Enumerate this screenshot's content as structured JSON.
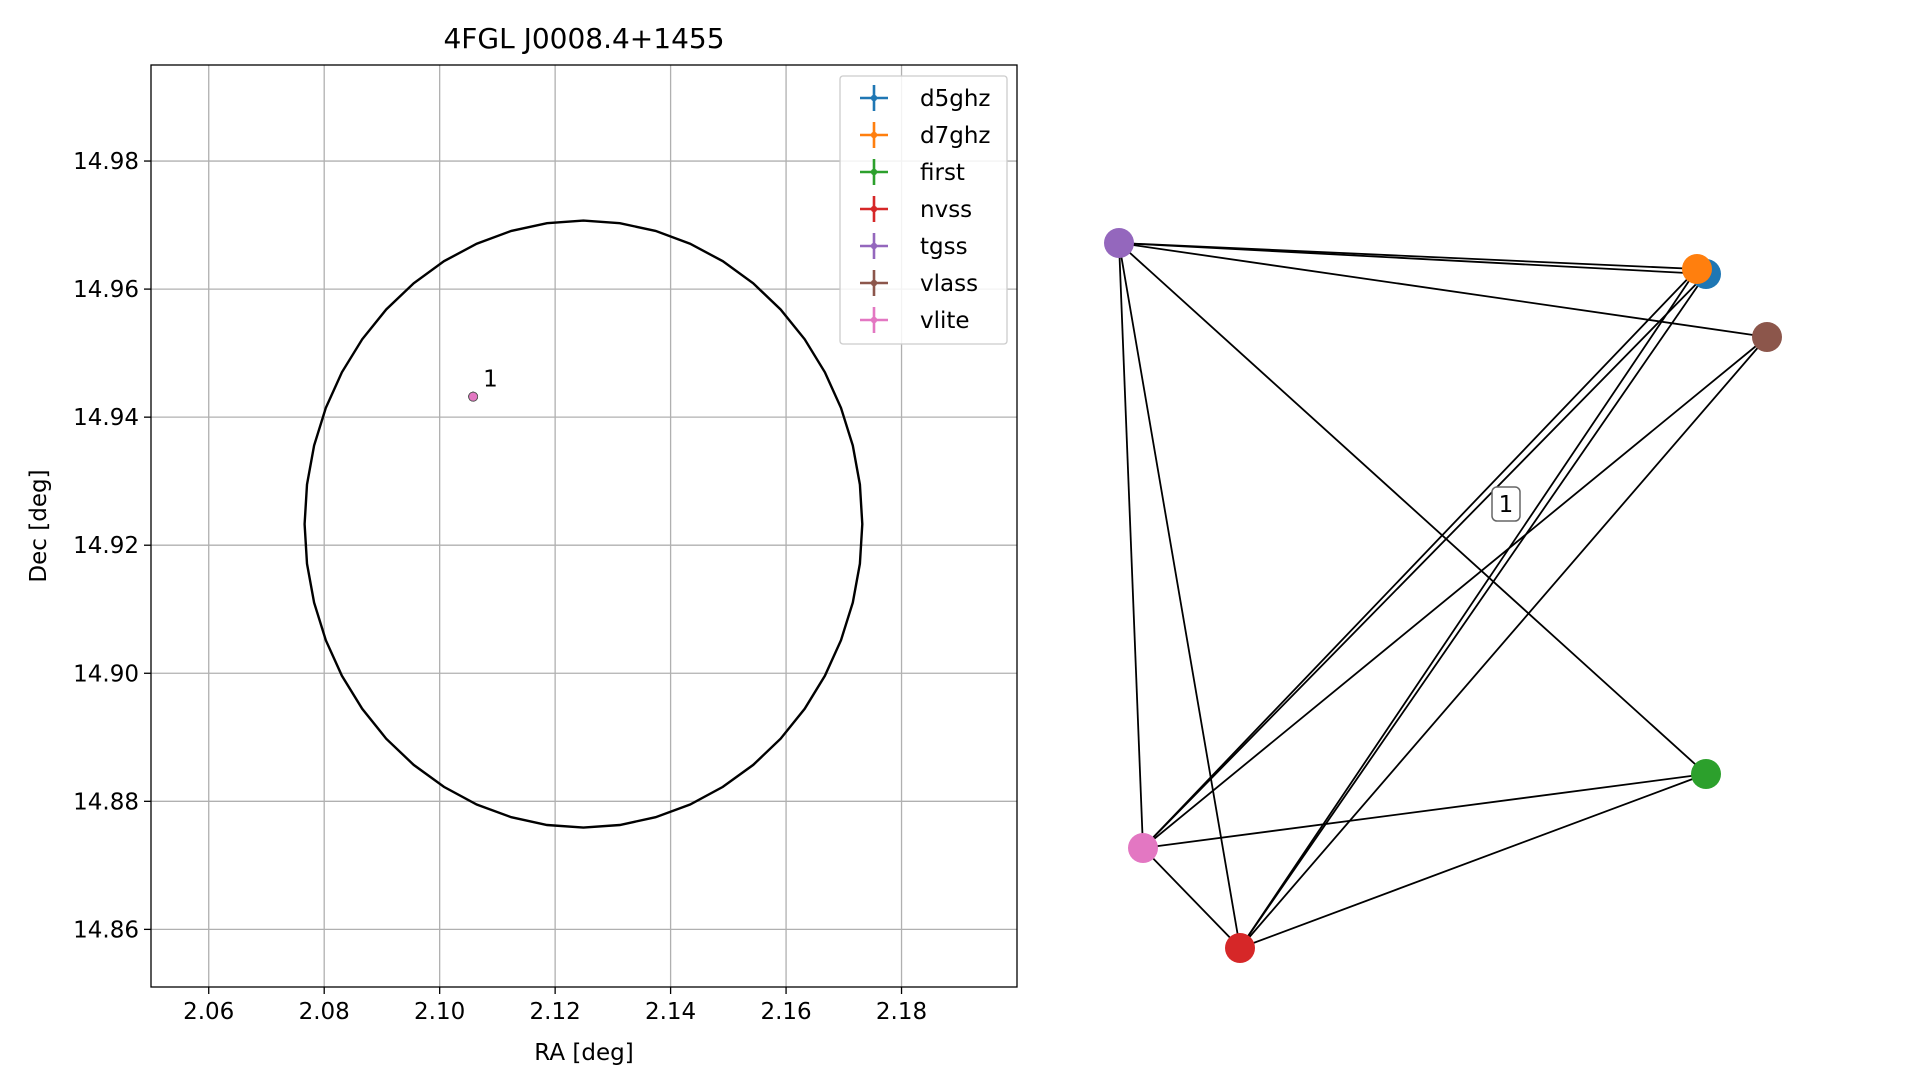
{
  "chart_data": [
    {
      "type": "scatter",
      "title": "4FGL J0008.4+1455",
      "xlabel": "RA [deg]",
      "ylabel": "Dec [deg]",
      "xlim": [
        2.05,
        2.2
      ],
      "ylim": [
        14.851,
        14.995
      ],
      "xticks": [
        2.06,
        2.08,
        2.1,
        2.12,
        2.14,
        2.16,
        2.18
      ],
      "yticks": [
        14.86,
        14.88,
        14.9,
        14.92,
        14.94,
        14.96,
        14.98
      ],
      "xtick_labels": [
        "2.06",
        "2.08",
        "2.10",
        "2.12",
        "2.14",
        "2.16",
        "2.18"
      ],
      "ytick_labels": [
        "14.86",
        "14.88",
        "14.90",
        "14.92",
        "14.94",
        "14.96",
        "14.98"
      ],
      "grid": true,
      "legend_position": "top-right",
      "ellipse": {
        "center": [
          2.1249,
          14.9233
        ],
        "radius_ra": 0.0483,
        "radius_dec": 0.0474
      },
      "series": [
        {
          "name": "d5ghz",
          "color": "#1f77b4",
          "points": [
            [
              2.1058,
              14.9432
            ]
          ]
        },
        {
          "name": "d7ghz",
          "color": "#ff7f0e",
          "points": [
            [
              2.1058,
              14.9432
            ]
          ]
        },
        {
          "name": "first",
          "color": "#2ca02c",
          "points": [
            [
              2.1058,
              14.9432
            ]
          ]
        },
        {
          "name": "nvss",
          "color": "#d62728",
          "points": [
            [
              2.1058,
              14.9432
            ]
          ]
        },
        {
          "name": "tgss",
          "color": "#9467bd",
          "points": [
            [
              2.1058,
              14.9432
            ]
          ]
        },
        {
          "name": "vlass",
          "color": "#8c564b",
          "points": [
            [
              2.1058,
              14.9432
            ]
          ]
        },
        {
          "name": "vlite",
          "color": "#e377c2",
          "points": [
            [
              2.1058,
              14.9432
            ]
          ]
        }
      ],
      "annotations": [
        {
          "text": "1",
          "x": 2.1058,
          "y": 14.9432
        }
      ]
    },
    {
      "type": "network",
      "node_positions_hint": "layout positions are not data units",
      "nodes": [
        {
          "id": "d5ghz",
          "color": "#1f77b4"
        },
        {
          "id": "d7ghz",
          "color": "#ff7f0e"
        },
        {
          "id": "first",
          "color": "#2ca02c"
        },
        {
          "id": "nvss",
          "color": "#d62728"
        },
        {
          "id": "tgss",
          "color": "#9467bd"
        },
        {
          "id": "vlass",
          "color": "#8c564b"
        },
        {
          "id": "vlite",
          "color": "#e377c2"
        }
      ],
      "edges": [
        [
          "tgss",
          "d5ghz"
        ],
        [
          "tgss",
          "d7ghz"
        ],
        [
          "tgss",
          "vlass"
        ],
        [
          "tgss",
          "first"
        ],
        [
          "tgss",
          "nvss"
        ],
        [
          "tgss",
          "vlite"
        ],
        [
          "d5ghz",
          "vlite"
        ],
        [
          "d5ghz",
          "nvss"
        ],
        [
          "d7ghz",
          "vlite"
        ],
        [
          "d7ghz",
          "nvss"
        ],
        [
          "vlass",
          "vlite"
        ],
        [
          "vlass",
          "nvss"
        ],
        [
          "vlite",
          "first"
        ],
        [
          "vlite",
          "nvss"
        ],
        [
          "nvss",
          "first"
        ]
      ],
      "edge_label": "1"
    }
  ]
}
